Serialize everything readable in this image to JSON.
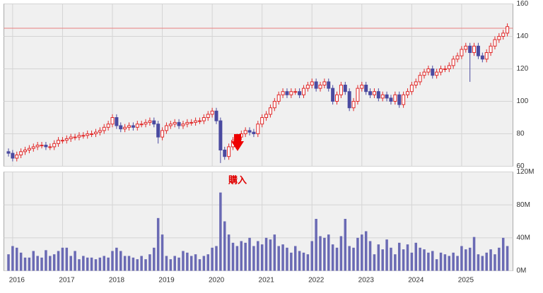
{
  "chart_data": [
    {
      "type": "candlestick",
      "up_color": "#e02828",
      "down_color": "#4a4aa0",
      "reference_line": 145,
      "reference_color": "#e88080",
      "ylim": [
        60,
        160
      ],
      "yticks": [
        60,
        80,
        100,
        120,
        140,
        160
      ],
      "grid": true,
      "annotation": "購入",
      "open": [
        69,
        68,
        65,
        67,
        69,
        70,
        71,
        72,
        73,
        73,
        72,
        72,
        74,
        76,
        76,
        77,
        78,
        78,
        79,
        79,
        80,
        80,
        81,
        82,
        84,
        86,
        90,
        85,
        83,
        84,
        85,
        84,
        86,
        86,
        87,
        88,
        86,
        78,
        82,
        85,
        86,
        87,
        85,
        86,
        87,
        87,
        88,
        88,
        90,
        92,
        94,
        88,
        70,
        66,
        72,
        76,
        78,
        80,
        82,
        81,
        80,
        86,
        90,
        92,
        96,
        100,
        104,
        106,
        104,
        106,
        106,
        104,
        108,
        110,
        112,
        108,
        110,
        112,
        108,
        100,
        104,
        110,
        106,
        96,
        100,
        108,
        110,
        106,
        104,
        106,
        102,
        104,
        102,
        100,
        104,
        98,
        104,
        106,
        110,
        112,
        116,
        118,
        120,
        116,
        118,
        120,
        120,
        122,
        126,
        128,
        132,
        134,
        130,
        134,
        128,
        126,
        130,
        134,
        138,
        140,
        142
      ],
      "high": [
        71,
        70,
        69,
        71,
        72,
        73,
        74,
        75,
        75,
        75,
        74,
        76,
        78,
        78,
        79,
        80,
        80,
        81,
        81,
        82,
        82,
        83,
        84,
        86,
        88,
        92,
        92,
        87,
        86,
        87,
        87,
        88,
        88,
        89,
        90,
        90,
        88,
        84,
        87,
        88,
        89,
        89,
        88,
        89,
        89,
        90,
        90,
        92,
        94,
        96,
        96,
        90,
        72,
        74,
        78,
        80,
        82,
        84,
        84,
        83,
        88,
        92,
        94,
        98,
        102,
        106,
        108,
        108,
        108,
        108,
        108,
        110,
        112,
        114,
        114,
        112,
        114,
        114,
        110,
        106,
        112,
        112,
        108,
        102,
        110,
        112,
        112,
        108,
        108,
        108,
        106,
        106,
        104,
        106,
        106,
        106,
        108,
        112,
        114,
        118,
        120,
        122,
        122,
        120,
        122,
        122,
        124,
        128,
        130,
        134,
        136,
        136,
        136,
        136,
        130,
        132,
        136,
        140,
        142,
        144,
        148
      ],
      "low": [
        66,
        63,
        63,
        65,
        67,
        68,
        69,
        70,
        71,
        70,
        70,
        70,
        72,
        74,
        74,
        75,
        76,
        76,
        77,
        77,
        78,
        78,
        79,
        80,
        82,
        84,
        83,
        81,
        81,
        82,
        82,
        82,
        84,
        84,
        85,
        84,
        74,
        76,
        80,
        83,
        84,
        83,
        83,
        84,
        85,
        85,
        86,
        86,
        88,
        90,
        86,
        62,
        64,
        64,
        70,
        74,
        76,
        78,
        79,
        78,
        78,
        84,
        88,
        90,
        94,
        98,
        102,
        102,
        102,
        104,
        102,
        102,
        106,
        108,
        106,
        106,
        108,
        106,
        98,
        98,
        102,
        104,
        94,
        94,
        98,
        106,
        104,
        102,
        102,
        100,
        100,
        100,
        98,
        98,
        96,
        96,
        102,
        104,
        108,
        110,
        114,
        116,
        114,
        114,
        116,
        118,
        118,
        120,
        124,
        126,
        130,
        112,
        128,
        126,
        124,
        124,
        128,
        132,
        136,
        138,
        140
      ],
      "close": [
        68,
        65,
        67,
        69,
        70,
        71,
        72,
        73,
        73,
        72,
        72,
        74,
        76,
        76,
        77,
        78,
        78,
        79,
        79,
        80,
        80,
        81,
        82,
        84,
        86,
        90,
        85,
        83,
        84,
        85,
        84,
        86,
        86,
        87,
        88,
        86,
        78,
        82,
        85,
        86,
        87,
        85,
        86,
        87,
        87,
        88,
        88,
        90,
        92,
        94,
        88,
        70,
        66,
        72,
        76,
        78,
        80,
        82,
        81,
        80,
        86,
        90,
        92,
        96,
        100,
        104,
        106,
        104,
        106,
        106,
        104,
        108,
        110,
        112,
        108,
        110,
        112,
        108,
        100,
        104,
        110,
        106,
        96,
        100,
        108,
        110,
        106,
        104,
        106,
        102,
        104,
        102,
        100,
        104,
        98,
        104,
        106,
        110,
        112,
        116,
        118,
        120,
        116,
        118,
        120,
        120,
        122,
        126,
        128,
        132,
        134,
        130,
        134,
        128,
        126,
        130,
        134,
        138,
        140,
        142,
        146
      ]
    },
    {
      "type": "bar",
      "color": "#6a6ab4",
      "ylim": [
        0,
        120
      ],
      "grid": true,
      "yticks": [
        {
          "value": 0,
          "label": "0M"
        },
        {
          "value": 40,
          "label": "40M"
        },
        {
          "value": 80,
          "label": "80M"
        },
        {
          "value": 120,
          "label": "120M"
        }
      ],
      "categories": [
        null,
        "2016",
        null,
        null,
        null,
        null,
        null,
        null,
        null,
        null,
        null,
        null,
        null,
        "2017",
        null,
        null,
        null,
        null,
        null,
        null,
        null,
        null,
        null,
        null,
        null,
        "2018",
        null,
        null,
        null,
        null,
        null,
        null,
        null,
        null,
        null,
        null,
        null,
        "2019",
        null,
        null,
        null,
        null,
        null,
        null,
        null,
        null,
        null,
        null,
        null,
        "2020",
        null,
        null,
        null,
        null,
        null,
        null,
        null,
        null,
        null,
        null,
        null,
        "2021",
        null,
        null,
        null,
        null,
        null,
        null,
        null,
        null,
        null,
        null,
        null,
        "2022",
        null,
        null,
        null,
        null,
        null,
        null,
        null,
        null,
        null,
        null,
        null,
        "2023",
        null,
        null,
        null,
        null,
        null,
        null,
        null,
        null,
        null,
        null,
        null,
        "2024",
        null,
        null,
        null,
        null,
        null,
        null,
        null,
        null,
        null,
        null,
        null,
        "2025",
        null,
        null,
        null,
        null,
        null,
        null,
        null,
        null,
        null,
        null,
        null
      ],
      "values": [
        20,
        30,
        28,
        22,
        16,
        16,
        24,
        18,
        16,
        25,
        18,
        20,
        24,
        28,
        28,
        18,
        24,
        14,
        18,
        16,
        16,
        14,
        16,
        18,
        16,
        24,
        28,
        24,
        18,
        18,
        16,
        14,
        18,
        14,
        20,
        28,
        64,
        44,
        18,
        14,
        18,
        16,
        24,
        22,
        18,
        20,
        14,
        18,
        20,
        28,
        30,
        95,
        60,
        44,
        34,
        30,
        36,
        34,
        40,
        30,
        36,
        32,
        40,
        38,
        44,
        30,
        32,
        28,
        22,
        30,
        24,
        22,
        20,
        36,
        63,
        42,
        40,
        44,
        32,
        28,
        42,
        63,
        30,
        28,
        40,
        44,
        48,
        36,
        20,
        32,
        26,
        38,
        28,
        20,
        34,
        26,
        32,
        22,
        34,
        28,
        26,
        22,
        24,
        14,
        22,
        20,
        18,
        22,
        18,
        30,
        26,
        28,
        41,
        20,
        18,
        22,
        26,
        20,
        28,
        40,
        30
      ]
    }
  ]
}
